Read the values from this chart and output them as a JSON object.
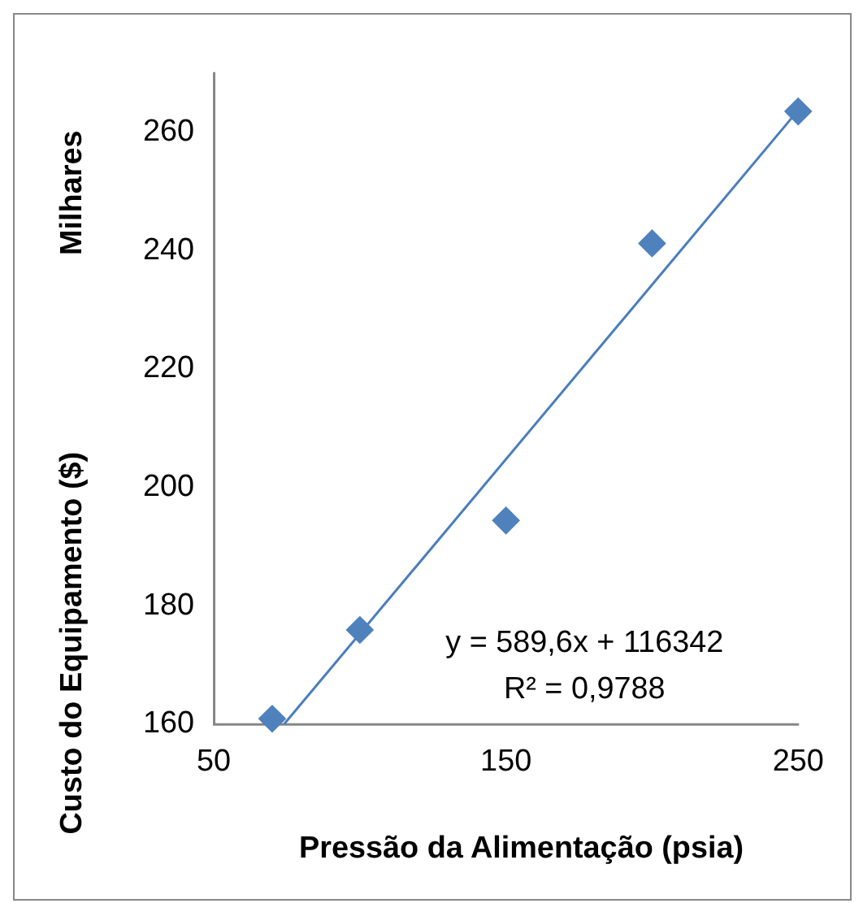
{
  "chart_data": {
    "type": "scatter",
    "ylabel": "Custo do Equipamento ($)",
    "xlabel": "Pressão da Alimentação (psia)",
    "annotations": [
      "Milhares",
      "y = 589,6x + 116342",
      "R² = 0,9788"
    ],
    "x": [
      70,
      100,
      150,
      200,
      250
    ],
    "series": [
      {
        "color": "#4f81bd",
        "values": [
          160.9,
          175.9,
          194.4,
          241.2,
          263.5
        ]
      },
      {
        "type": "line",
        "x": [
          74.1,
          250
        ],
        "values": [
          160.0,
          263.7
        ],
        "color": "#4a7ebb",
        "marker": "none"
      }
    ],
    "marker": "diamond",
    "xlim": [
      50,
      250
    ],
    "xticks": [
      50,
      150,
      250
    ],
    "ylim": [
      160,
      270
    ],
    "yticks": [
      160,
      180,
      200,
      220,
      240,
      260
    ]
  }
}
